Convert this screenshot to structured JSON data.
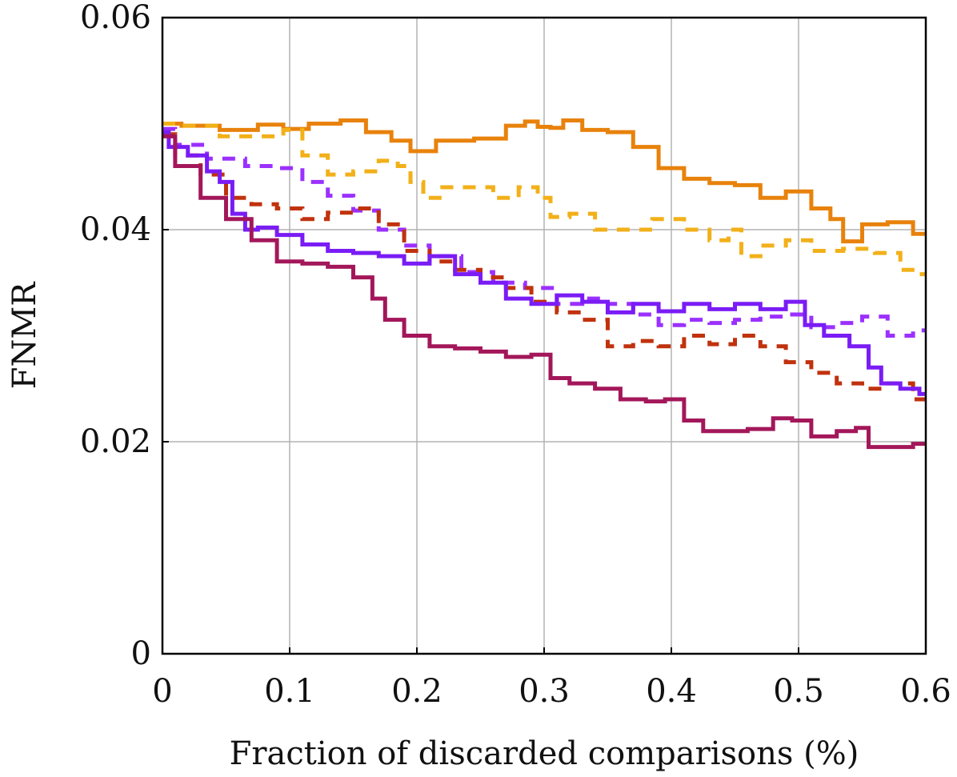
{
  "chart_data": {
    "type": "line",
    "title": "",
    "xlabel": "Fraction of discarded comparisons (%)",
    "ylabel": "FNMR",
    "xlim": [
      0,
      0.6
    ],
    "ylim": [
      0,
      0.06
    ],
    "grid": true,
    "x_ticks": [
      {
        "value": 0,
        "label": "0"
      },
      {
        "value": 0.1,
        "label": "0.1"
      },
      {
        "value": 0.2,
        "label": "0.2"
      },
      {
        "value": 0.3,
        "label": "0.3"
      },
      {
        "value": 0.4,
        "label": "0.4"
      },
      {
        "value": 0.5,
        "label": "0.5"
      },
      {
        "value": 0.6,
        "label": "0.6"
      }
    ],
    "y_ticks": [
      {
        "value": 0,
        "label": "0"
      },
      {
        "value": 0.02,
        "label": "0.02"
      },
      {
        "value": 0.04,
        "label": "0.04"
      },
      {
        "value": 0.06,
        "label": "0.06"
      }
    ],
    "series": [
      {
        "name": "orange-solid",
        "color": "#e8820c",
        "dash": "solid",
        "points": [
          [
            0,
            0.05
          ],
          [
            0.03,
            0.0498
          ],
          [
            0.06,
            0.0494
          ],
          [
            0.09,
            0.0499
          ],
          [
            0.1,
            0.0495
          ],
          [
            0.13,
            0.05
          ],
          [
            0.15,
            0.0503
          ],
          [
            0.17,
            0.0492
          ],
          [
            0.19,
            0.0484
          ],
          [
            0.2,
            0.0474
          ],
          [
            0.23,
            0.0484
          ],
          [
            0.26,
            0.0486
          ],
          [
            0.28,
            0.0498
          ],
          [
            0.29,
            0.0502
          ],
          [
            0.3,
            0.0497
          ],
          [
            0.31,
            0.0496
          ],
          [
            0.32,
            0.0503
          ],
          [
            0.34,
            0.0494
          ],
          [
            0.36,
            0.0492
          ],
          [
            0.38,
            0.0478
          ],
          [
            0.4,
            0.0458
          ],
          [
            0.42,
            0.0448
          ],
          [
            0.44,
            0.0444
          ],
          [
            0.46,
            0.0442
          ],
          [
            0.48,
            0.043
          ],
          [
            0.5,
            0.0436
          ],
          [
            0.52,
            0.042
          ],
          [
            0.53,
            0.041
          ],
          [
            0.54,
            0.0389
          ],
          [
            0.56,
            0.0405
          ],
          [
            0.58,
            0.0407
          ],
          [
            0.6,
            0.0396
          ]
        ]
      },
      {
        "name": "yellow-dashed",
        "color": "#f2b019",
        "dash": "dashed",
        "points": [
          [
            0,
            0.05
          ],
          [
            0.03,
            0.0498
          ],
          [
            0.06,
            0.0488
          ],
          [
            0.09,
            0.0488
          ],
          [
            0.1,
            0.0494
          ],
          [
            0.12,
            0.047
          ],
          [
            0.14,
            0.0452
          ],
          [
            0.16,
            0.0455
          ],
          [
            0.18,
            0.0465
          ],
          [
            0.19,
            0.046
          ],
          [
            0.2,
            0.0445
          ],
          [
            0.21,
            0.043
          ],
          [
            0.23,
            0.044
          ],
          [
            0.25,
            0.044
          ],
          [
            0.27,
            0.043
          ],
          [
            0.29,
            0.044
          ],
          [
            0.3,
            0.043
          ],
          [
            0.31,
            0.0412
          ],
          [
            0.33,
            0.0415
          ],
          [
            0.35,
            0.04
          ],
          [
            0.37,
            0.04
          ],
          [
            0.4,
            0.041
          ],
          [
            0.42,
            0.04
          ],
          [
            0.44,
            0.039
          ],
          [
            0.45,
            0.04
          ],
          [
            0.46,
            0.0375
          ],
          [
            0.48,
            0.0385
          ],
          [
            0.5,
            0.039
          ],
          [
            0.52,
            0.038
          ],
          [
            0.55,
            0.0382
          ],
          [
            0.57,
            0.0378
          ],
          [
            0.59,
            0.0362
          ],
          [
            0.6,
            0.0358
          ]
        ]
      },
      {
        "name": "violet-dashed",
        "color": "#9b30ff",
        "dash": "dashed",
        "points": [
          [
            0,
            0.0495
          ],
          [
            0.02,
            0.048
          ],
          [
            0.05,
            0.0467
          ],
          [
            0.08,
            0.046
          ],
          [
            0.1,
            0.0458
          ],
          [
            0.12,
            0.0445
          ],
          [
            0.14,
            0.0432
          ],
          [
            0.16,
            0.0418
          ],
          [
            0.18,
            0.04
          ],
          [
            0.2,
            0.0385
          ],
          [
            0.22,
            0.0375
          ],
          [
            0.25,
            0.036
          ],
          [
            0.27,
            0.035
          ],
          [
            0.3,
            0.0345
          ],
          [
            0.32,
            0.033
          ],
          [
            0.34,
            0.0335
          ],
          [
            0.36,
            0.033
          ],
          [
            0.38,
            0.032
          ],
          [
            0.4,
            0.031
          ],
          [
            0.42,
            0.0315
          ],
          [
            0.44,
            0.0312
          ],
          [
            0.46,
            0.0315
          ],
          [
            0.48,
            0.0318
          ],
          [
            0.5,
            0.032
          ],
          [
            0.52,
            0.0308
          ],
          [
            0.54,
            0.0312
          ],
          [
            0.56,
            0.0318
          ],
          [
            0.58,
            0.03
          ],
          [
            0.6,
            0.0305
          ]
        ]
      },
      {
        "name": "red-dashed",
        "color": "#c0320e",
        "dash": "dashed",
        "points": [
          [
            0,
            0.049
          ],
          [
            0.02,
            0.047
          ],
          [
            0.04,
            0.0452
          ],
          [
            0.06,
            0.043
          ],
          [
            0.08,
            0.0424
          ],
          [
            0.1,
            0.042
          ],
          [
            0.12,
            0.041
          ],
          [
            0.14,
            0.0416
          ],
          [
            0.16,
            0.042
          ],
          [
            0.18,
            0.0405
          ],
          [
            0.2,
            0.038
          ],
          [
            0.22,
            0.037
          ],
          [
            0.24,
            0.0362
          ],
          [
            0.26,
            0.0355
          ],
          [
            0.28,
            0.0345
          ],
          [
            0.3,
            0.0332
          ],
          [
            0.32,
            0.0322
          ],
          [
            0.34,
            0.0315
          ],
          [
            0.36,
            0.029
          ],
          [
            0.38,
            0.0295
          ],
          [
            0.4,
            0.029
          ],
          [
            0.42,
            0.03
          ],
          [
            0.44,
            0.0292
          ],
          [
            0.46,
            0.03
          ],
          [
            0.48,
            0.029
          ],
          [
            0.5,
            0.0275
          ],
          [
            0.52,
            0.0265
          ],
          [
            0.54,
            0.0255
          ],
          [
            0.56,
            0.025
          ],
          [
            0.58,
            0.0255
          ],
          [
            0.6,
            0.024
          ]
        ]
      },
      {
        "name": "purple-solid",
        "color": "#7a1cf5",
        "dash": "solid",
        "points": [
          [
            0,
            0.0492
          ],
          [
            0.01,
            0.0478
          ],
          [
            0.03,
            0.047
          ],
          [
            0.04,
            0.0455
          ],
          [
            0.05,
            0.0445
          ],
          [
            0.06,
            0.0415
          ],
          [
            0.07,
            0.04
          ],
          [
            0.08,
            0.0402
          ],
          [
            0.1,
            0.0395
          ],
          [
            0.12,
            0.0386
          ],
          [
            0.14,
            0.038
          ],
          [
            0.16,
            0.0378
          ],
          [
            0.18,
            0.0375
          ],
          [
            0.2,
            0.0368
          ],
          [
            0.22,
            0.0375
          ],
          [
            0.24,
            0.0358
          ],
          [
            0.26,
            0.035
          ],
          [
            0.28,
            0.0335
          ],
          [
            0.3,
            0.033
          ],
          [
            0.32,
            0.0338
          ],
          [
            0.34,
            0.0332
          ],
          [
            0.36,
            0.0322
          ],
          [
            0.38,
            0.033
          ],
          [
            0.4,
            0.0323
          ],
          [
            0.42,
            0.033
          ],
          [
            0.44,
            0.0325
          ],
          [
            0.46,
            0.033
          ],
          [
            0.48,
            0.0325
          ],
          [
            0.5,
            0.0332
          ],
          [
            0.51,
            0.031
          ],
          [
            0.53,
            0.03
          ],
          [
            0.55,
            0.029
          ],
          [
            0.56,
            0.027
          ],
          [
            0.57,
            0.0255
          ],
          [
            0.59,
            0.025
          ],
          [
            0.6,
            0.0245
          ]
        ]
      },
      {
        "name": "maroon-solid",
        "color": "#a3175a",
        "dash": "solid",
        "points": [
          [
            0,
            0.0488
          ],
          [
            0.02,
            0.046
          ],
          [
            0.04,
            0.043
          ],
          [
            0.06,
            0.041
          ],
          [
            0.08,
            0.039
          ],
          [
            0.1,
            0.037
          ],
          [
            0.12,
            0.0368
          ],
          [
            0.14,
            0.0365
          ],
          [
            0.16,
            0.0355
          ],
          [
            0.17,
            0.0335
          ],
          [
            0.18,
            0.0315
          ],
          [
            0.2,
            0.03
          ],
          [
            0.22,
            0.029
          ],
          [
            0.24,
            0.0288
          ],
          [
            0.26,
            0.0285
          ],
          [
            0.28,
            0.028
          ],
          [
            0.3,
            0.0282
          ],
          [
            0.31,
            0.026
          ],
          [
            0.33,
            0.0255
          ],
          [
            0.35,
            0.025
          ],
          [
            0.37,
            0.024
          ],
          [
            0.39,
            0.0238
          ],
          [
            0.4,
            0.024
          ],
          [
            0.42,
            0.022
          ],
          [
            0.43,
            0.021
          ],
          [
            0.45,
            0.021
          ],
          [
            0.47,
            0.0212
          ],
          [
            0.49,
            0.0222
          ],
          [
            0.5,
            0.022
          ],
          [
            0.52,
            0.0205
          ],
          [
            0.54,
            0.021
          ],
          [
            0.55,
            0.0213
          ],
          [
            0.56,
            0.0195
          ],
          [
            0.58,
            0.0195
          ],
          [
            0.6,
            0.0198
          ]
        ]
      }
    ]
  }
}
